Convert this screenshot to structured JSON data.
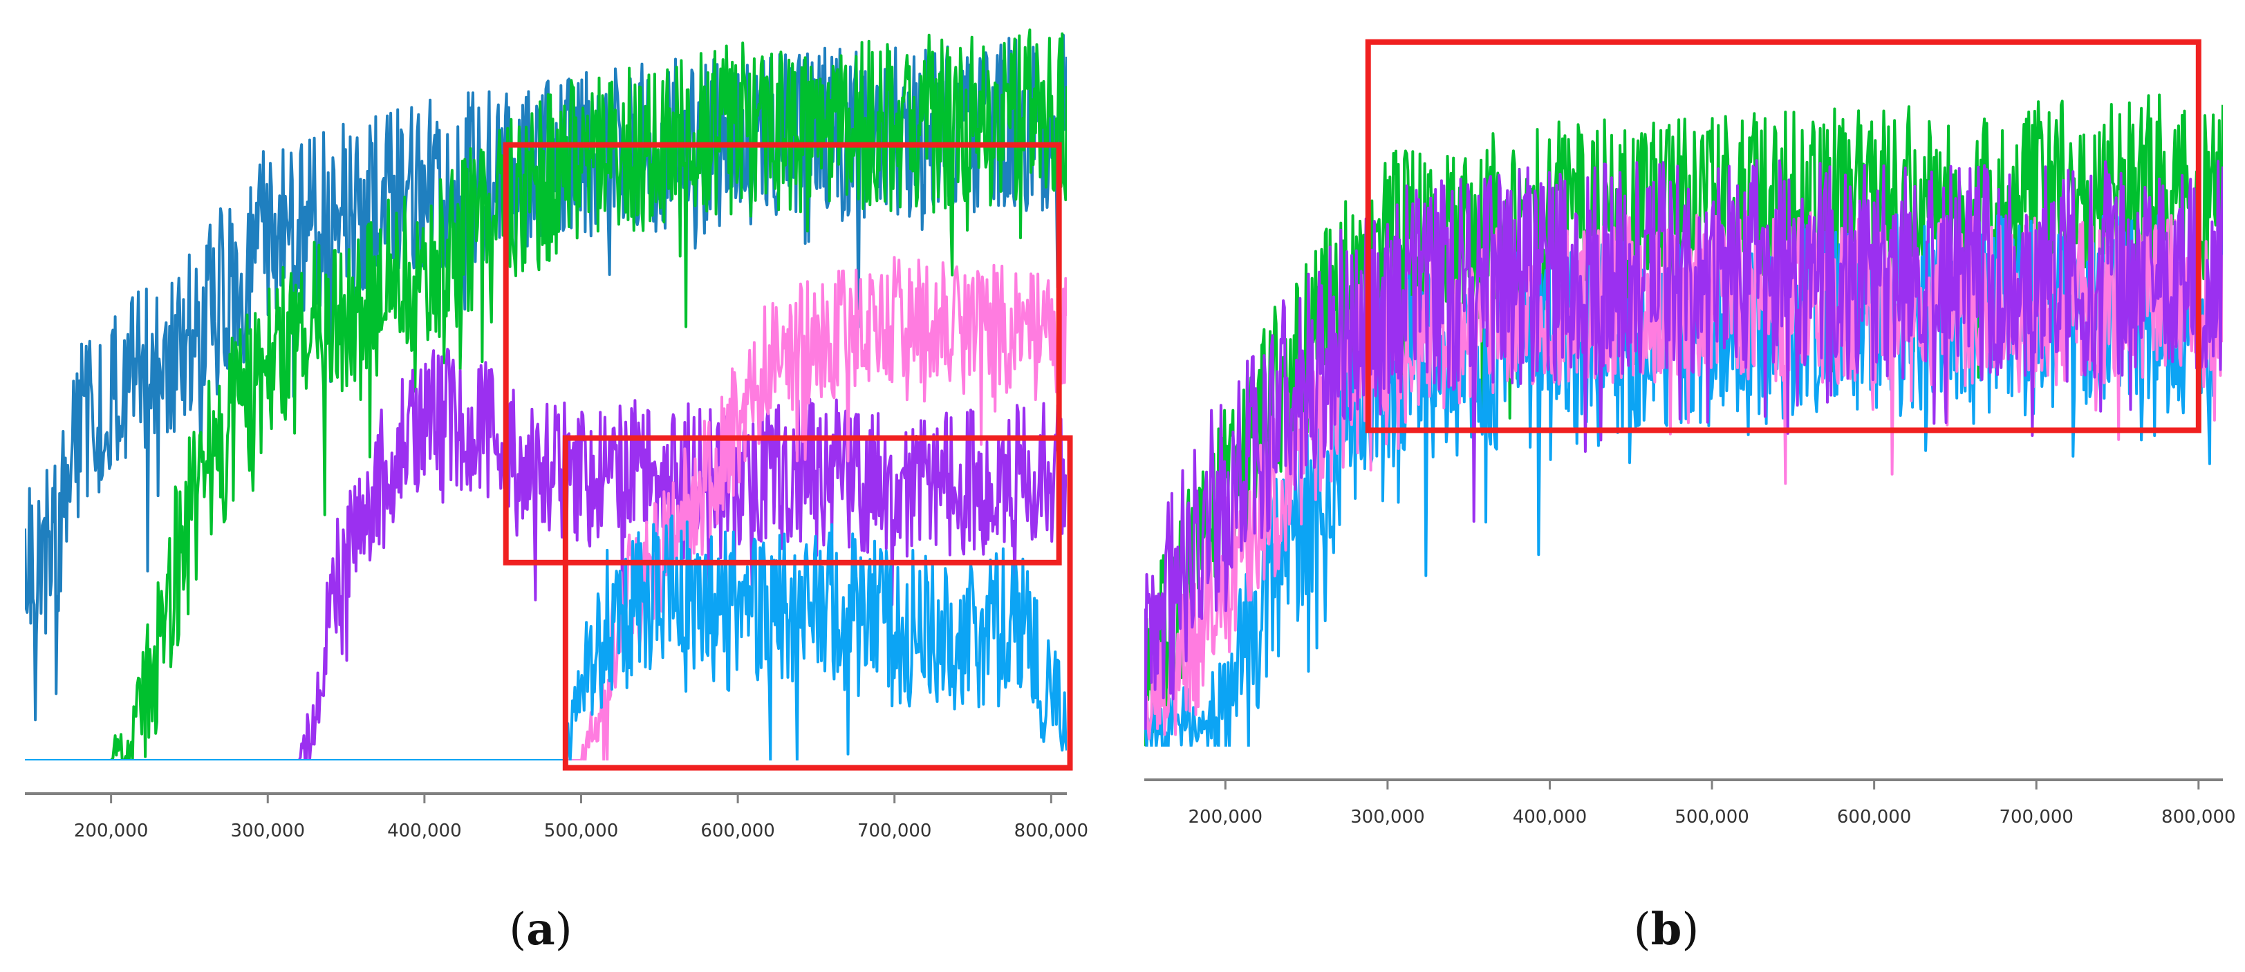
{
  "figure": {
    "colors": {
      "steel_blue": "#1f7fbf",
      "green": "#00c02e",
      "purple": "#9b30f0",
      "pink": "#ff7ce0",
      "light_blue": "#0ca4f4",
      "highlight_box": "#f02020",
      "axis": "#808080"
    }
  },
  "chart_data": [
    {
      "type": "line",
      "panel_label": "a",
      "title": "",
      "xlabel": "",
      "ylabel": "",
      "xlim": [
        145000,
        810000
      ],
      "ylim": [
        0,
        1
      ],
      "x_ticks": [
        200000,
        300000,
        400000,
        500000,
        600000,
        700000,
        800000
      ],
      "x_tick_labels": [
        "200,000",
        "300,000",
        "400,000",
        "500,000",
        "600,000",
        "700,000",
        "800,000"
      ],
      "y_axis_visible": false,
      "grid": false,
      "legend": "none",
      "series": [
        {
          "color": "#1f7fbf",
          "noise": 0.12,
          "knots": [
            [
              145000,
              0.28
            ],
            [
              165000,
              0.3
            ],
            [
              180000,
              0.45
            ],
            [
              250000,
              0.58
            ],
            [
              300000,
              0.72
            ],
            [
              400000,
              0.78
            ],
            [
              500000,
              0.82
            ],
            [
              600000,
              0.85
            ],
            [
              700000,
              0.86
            ],
            [
              800000,
              0.87
            ]
          ]
        },
        {
          "color": "#00c02e",
          "noise": 0.12,
          "knots": [
            [
              200000,
              0.0
            ],
            [
              215000,
              0.04
            ],
            [
              240000,
              0.25
            ],
            [
              260000,
              0.4
            ],
            [
              300000,
              0.55
            ],
            [
              330000,
              0.6
            ],
            [
              400000,
              0.67
            ],
            [
              450000,
              0.75
            ],
            [
              500000,
              0.82
            ],
            [
              600000,
              0.86
            ],
            [
              700000,
              0.87
            ],
            [
              800000,
              0.88
            ]
          ]
        },
        {
          "color": "#9b30f0",
          "noise": 0.1,
          "knots": [
            [
              145000,
              0.0
            ],
            [
              320000,
              0.0
            ],
            [
              330000,
              0.05
            ],
            [
              350000,
              0.3
            ],
            [
              400000,
              0.48
            ],
            [
              440000,
              0.45
            ],
            [
              500000,
              0.38
            ],
            [
              550000,
              0.4
            ],
            [
              600000,
              0.37
            ],
            [
              650000,
              0.4
            ],
            [
              700000,
              0.37
            ],
            [
              800000,
              0.39
            ]
          ]
        },
        {
          "color": "#ff7ce0",
          "noise": 0.09,
          "knots": [
            [
              145000,
              0.0
            ],
            [
              500000,
              0.0
            ],
            [
              510000,
              0.05
            ],
            [
              530000,
              0.22
            ],
            [
              580000,
              0.38
            ],
            [
              620000,
              0.55
            ],
            [
              680000,
              0.6
            ],
            [
              800000,
              0.58
            ]
          ]
        },
        {
          "color": "#0ca4f4",
          "noise": 0.11,
          "knots": [
            [
              145000,
              0.0
            ],
            [
              490000,
              0.0
            ],
            [
              495000,
              0.05
            ],
            [
              515000,
              0.18
            ],
            [
              550000,
              0.24
            ],
            [
              600000,
              0.2
            ],
            [
              650000,
              0.22
            ],
            [
              700000,
              0.18
            ],
            [
              780000,
              0.18
            ],
            [
              800000,
              0.08
            ]
          ]
        }
      ],
      "highlight_boxes": [
        {
          "x": [
            452000,
            805000
          ],
          "y": [
            0.27,
            0.84
          ]
        },
        {
          "x": [
            490000,
            812000
          ],
          "y": [
            -0.01,
            0.44
          ]
        }
      ]
    },
    {
      "type": "line",
      "panel_label": "b",
      "title": "",
      "xlabel": "",
      "ylabel": "",
      "xlim": [
        150000,
        815000
      ],
      "ylim": [
        0,
        1
      ],
      "x_ticks": [
        200000,
        300000,
        400000,
        500000,
        600000,
        700000,
        800000
      ],
      "x_tick_labels": [
        "200,000",
        "300,000",
        "400,000",
        "500,000",
        "600,000",
        "700,000",
        "800,000"
      ],
      "y_axis_visible": false,
      "grid": false,
      "legend": "none",
      "series": [
        {
          "color": "#00c02e",
          "noise": 0.13,
          "knots": [
            [
              150000,
              0.08
            ],
            [
              180000,
              0.25
            ],
            [
              220000,
              0.45
            ],
            [
              260000,
              0.6
            ],
            [
              300000,
              0.7
            ],
            [
              400000,
              0.74
            ],
            [
              500000,
              0.75
            ],
            [
              600000,
              0.76
            ],
            [
              700000,
              0.77
            ],
            [
              800000,
              0.78
            ]
          ]
        },
        {
          "color": "#0ca4f4",
          "noise": 0.14,
          "knots": [
            [
              150000,
              0.01
            ],
            [
              200000,
              0.05
            ],
            [
              230000,
              0.25
            ],
            [
              270000,
              0.42
            ],
            [
              300000,
              0.52
            ],
            [
              400000,
              0.56
            ],
            [
              500000,
              0.58
            ],
            [
              600000,
              0.6
            ],
            [
              700000,
              0.6
            ],
            [
              800000,
              0.6
            ]
          ]
        },
        {
          "color": "#ff7ce0",
          "noise": 0.12,
          "knots": [
            [
              150000,
              0.05
            ],
            [
              180000,
              0.15
            ],
            [
              220000,
              0.3
            ],
            [
              260000,
              0.48
            ],
            [
              300000,
              0.57
            ],
            [
              400000,
              0.62
            ],
            [
              500000,
              0.63
            ],
            [
              600000,
              0.62
            ],
            [
              700000,
              0.62
            ],
            [
              800000,
              0.62
            ]
          ]
        },
        {
          "color": "#9b30f0",
          "noise": 0.15,
          "knots": [
            [
              150000,
              0.12
            ],
            [
              180000,
              0.28
            ],
            [
              220000,
              0.42
            ],
            [
              260000,
              0.55
            ],
            [
              300000,
              0.63
            ],
            [
              400000,
              0.66
            ],
            [
              500000,
              0.67
            ],
            [
              600000,
              0.66
            ],
            [
              700000,
              0.66
            ],
            [
              800000,
              0.67
            ]
          ]
        }
      ],
      "highlight_boxes": [
        {
          "x": [
            288000,
            800000
          ],
          "y": [
            0.44,
            0.98
          ]
        }
      ]
    }
  ]
}
